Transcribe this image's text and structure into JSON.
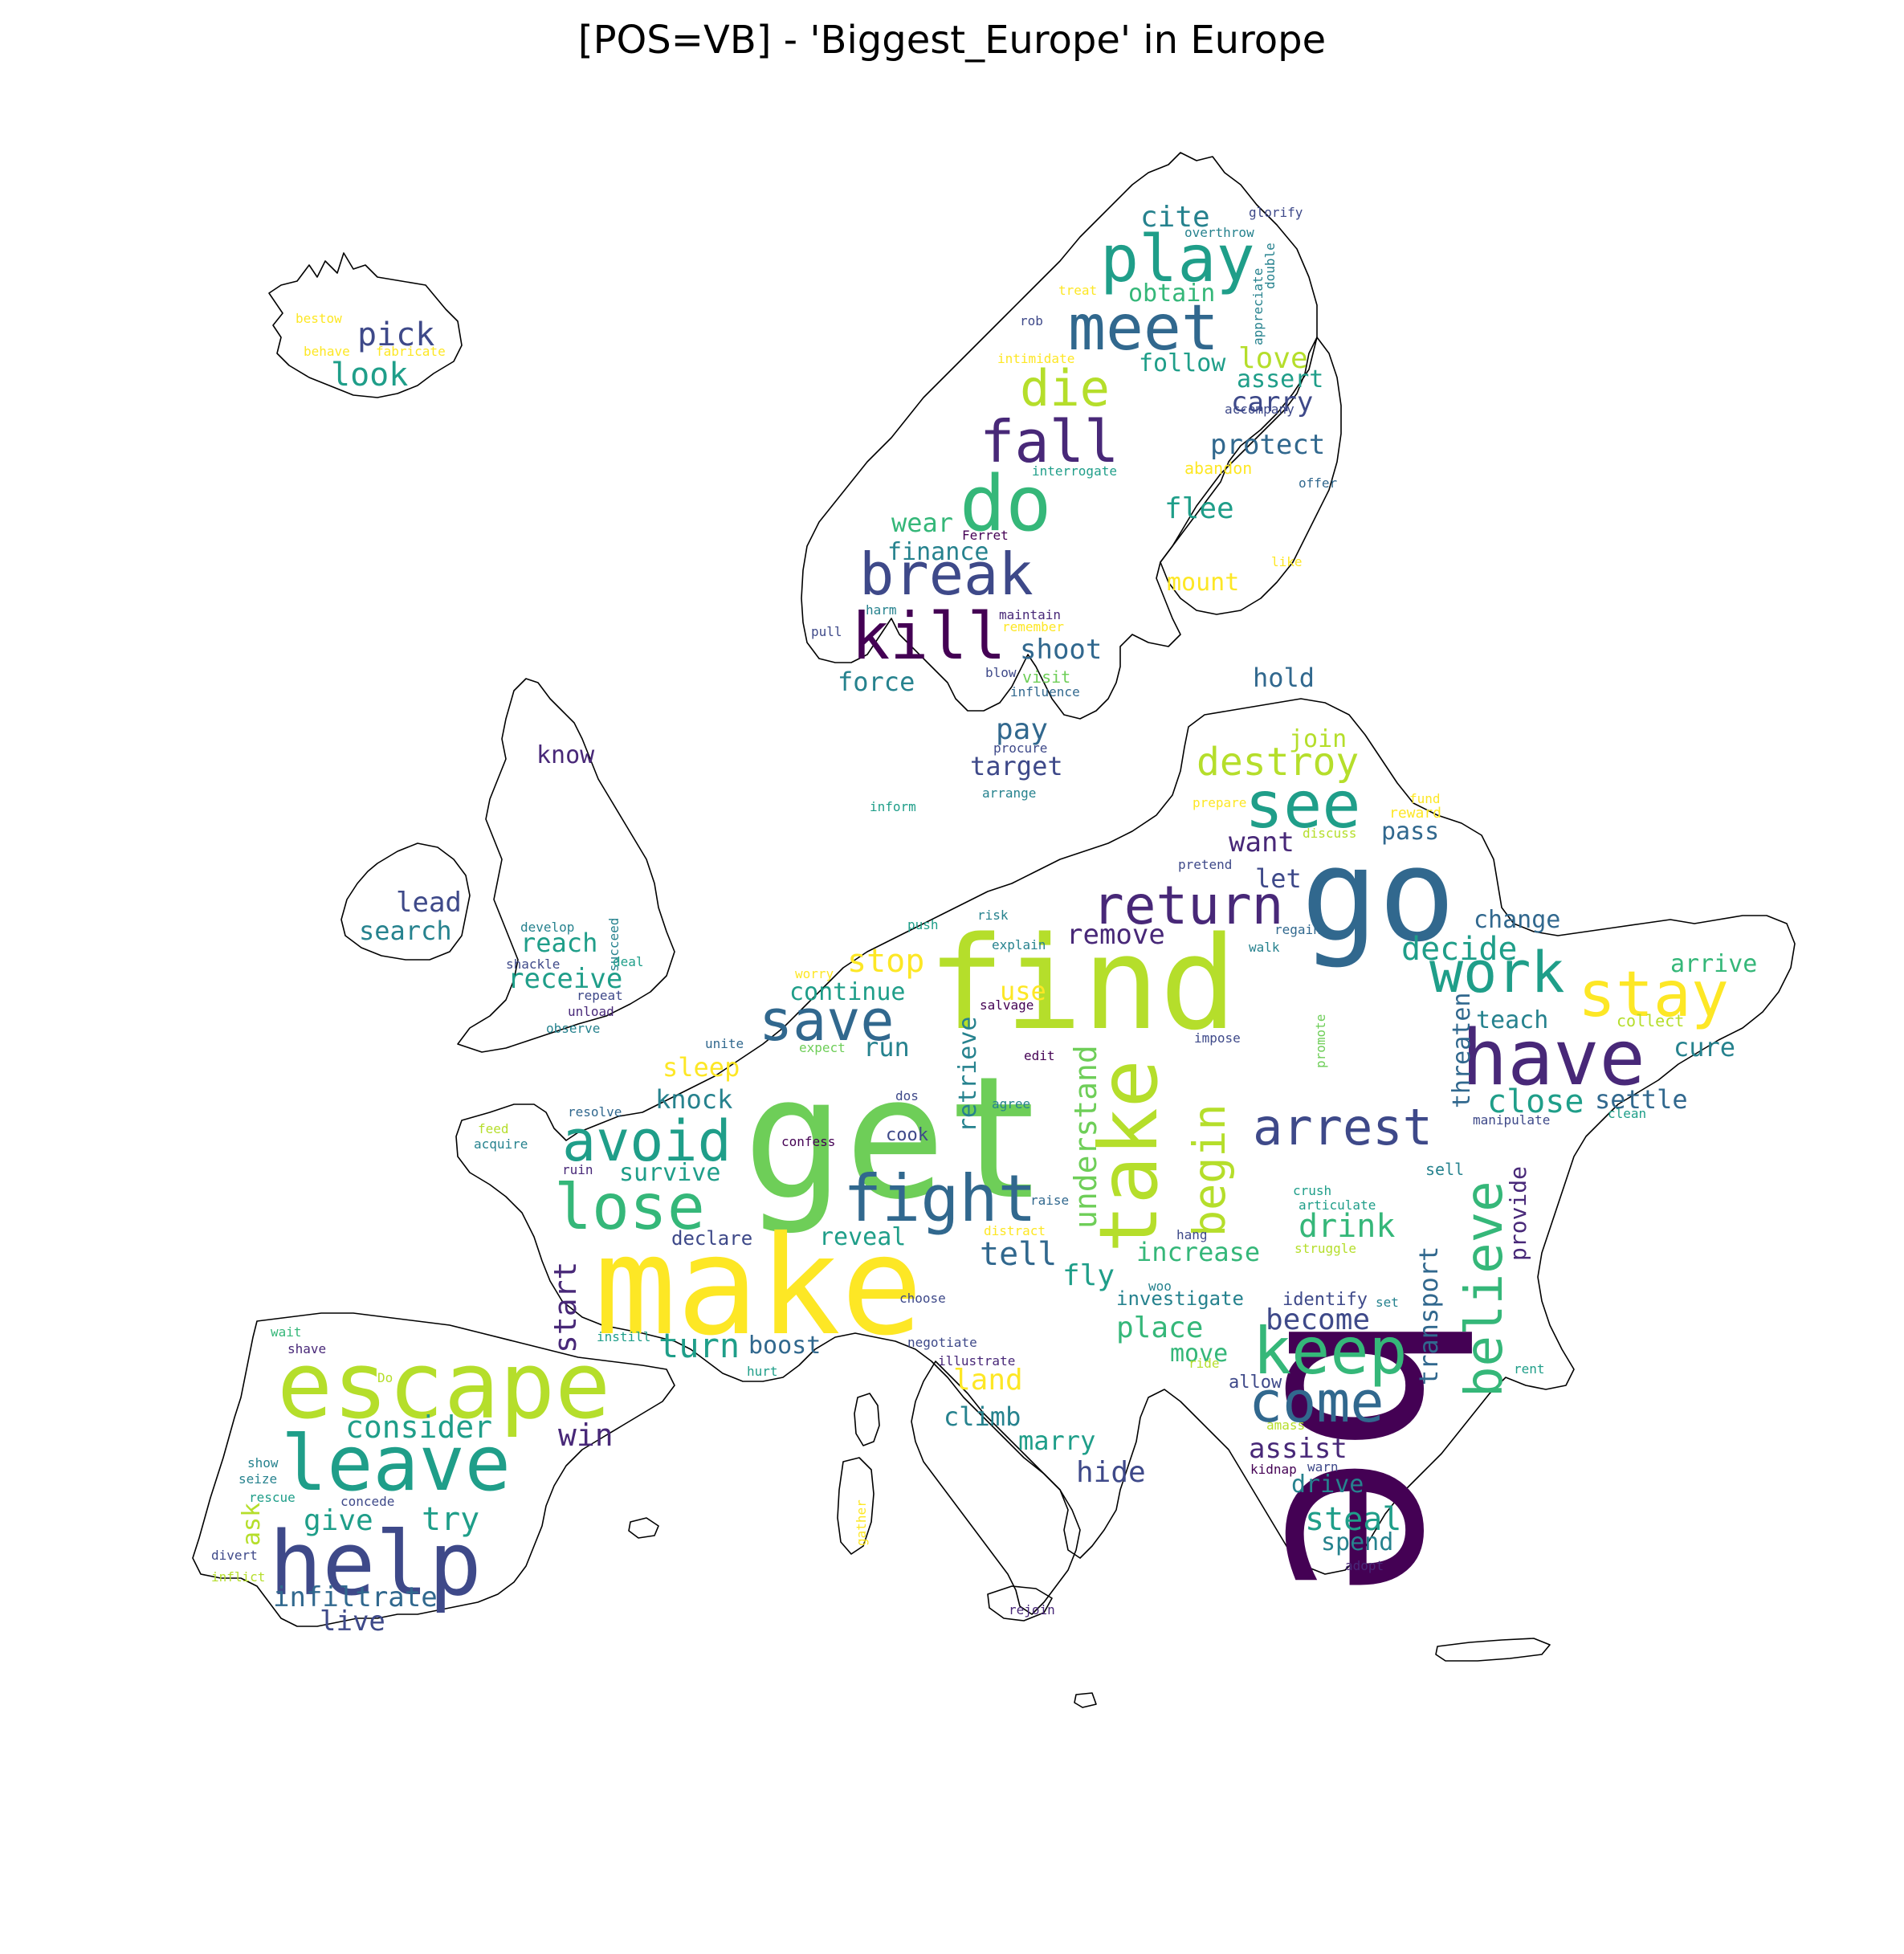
{
  "title": "[POS=VB] - 'Biggest_Europe' in Europe",
  "palette": {
    "dark_purple": "#440154",
    "purple": "#482878",
    "indigo": "#3e4989",
    "blue": "#31688e",
    "teal": "#26828e",
    "green_teal": "#1f9e89",
    "green": "#35b779",
    "light_green": "#6ece58",
    "lime": "#b5de2b",
    "yellow": "#fde725"
  },
  "words": [
    {
      "text": "be",
      "color": "dark_purple",
      "rotate": 90
    },
    {
      "text": "get",
      "color": "light_green"
    },
    {
      "text": "make",
      "color": "yellow"
    },
    {
      "text": "find",
      "color": "lime"
    },
    {
      "text": "go",
      "color": "blue"
    },
    {
      "text": "escape",
      "color": "lime"
    },
    {
      "text": "help",
      "color": "indigo"
    },
    {
      "text": "leave",
      "color": "green_teal"
    },
    {
      "text": "take",
      "color": "lime",
      "rotate": -90
    },
    {
      "text": "have",
      "color": "purple"
    },
    {
      "text": "keep",
      "color": "green"
    },
    {
      "text": "do",
      "color": "green"
    },
    {
      "text": "break",
      "color": "indigo"
    },
    {
      "text": "kill",
      "color": "dark_purple"
    },
    {
      "text": "play",
      "color": "green_teal"
    },
    {
      "text": "meet",
      "color": "blue"
    },
    {
      "text": "fall",
      "color": "purple"
    },
    {
      "text": "die",
      "color": "lime"
    },
    {
      "text": "fight",
      "color": "blue"
    },
    {
      "text": "lose",
      "color": "green"
    },
    {
      "text": "avoid",
      "color": "green_teal"
    },
    {
      "text": "save",
      "color": "blue"
    },
    {
      "text": "return",
      "color": "purple"
    },
    {
      "text": "see",
      "color": "green_teal"
    },
    {
      "text": "stay",
      "color": "yellow"
    },
    {
      "text": "work",
      "color": "green_teal"
    },
    {
      "text": "arrest",
      "color": "indigo"
    },
    {
      "text": "come",
      "color": "blue"
    },
    {
      "text": "believe",
      "color": "green",
      "rotate": -90
    },
    {
      "text": "begin",
      "color": "lime",
      "rotate": -90
    },
    {
      "text": "destroy",
      "color": "lime"
    },
    {
      "text": "understand",
      "color": "light_green",
      "rotate": -90
    },
    {
      "text": "start",
      "color": "purple",
      "rotate": -90
    },
    {
      "text": "turn",
      "color": "green_teal"
    },
    {
      "text": "consider",
      "color": "green_teal"
    },
    {
      "text": "win",
      "color": "purple"
    },
    {
      "text": "give",
      "color": "green_teal"
    },
    {
      "text": "try",
      "color": "green_teal"
    },
    {
      "text": "infiltrate",
      "color": "blue"
    },
    {
      "text": "live",
      "color": "indigo"
    },
    {
      "text": "ask",
      "color": "lime",
      "rotate": -90
    },
    {
      "text": "pick",
      "color": "indigo"
    },
    {
      "text": "look",
      "color": "green_teal"
    },
    {
      "text": "know",
      "color": "purple"
    },
    {
      "text": "lead",
      "color": "indigo"
    },
    {
      "text": "search",
      "color": "teal"
    },
    {
      "text": "reach",
      "color": "green_teal"
    },
    {
      "text": "receive",
      "color": "green_teal"
    },
    {
      "text": "stop",
      "color": "yellow"
    },
    {
      "text": "continue",
      "color": "green_teal"
    },
    {
      "text": "use",
      "color": "yellow"
    },
    {
      "text": "run",
      "color": "teal"
    },
    {
      "text": "sleep",
      "color": "yellow"
    },
    {
      "text": "knock",
      "color": "teal"
    },
    {
      "text": "survive",
      "color": "green_teal"
    },
    {
      "text": "declare",
      "color": "indigo"
    },
    {
      "text": "reveal",
      "color": "green_teal"
    },
    {
      "text": "tell",
      "color": "blue"
    },
    {
      "text": "fly",
      "color": "green_teal"
    },
    {
      "text": "boost",
      "color": "blue"
    },
    {
      "text": "land",
      "color": "yellow"
    },
    {
      "text": "climb",
      "color": "teal"
    },
    {
      "text": "marry",
      "color": "green_teal"
    },
    {
      "text": "hide",
      "color": "indigo"
    },
    {
      "text": "place",
      "color": "green"
    },
    {
      "text": "move",
      "color": "green"
    },
    {
      "text": "become",
      "color": "indigo"
    },
    {
      "text": "increase",
      "color": "green"
    },
    {
      "text": "drink",
      "color": "green"
    },
    {
      "text": "close",
      "color": "green_teal"
    },
    {
      "text": "settle",
      "color": "blue"
    },
    {
      "text": "cure",
      "color": "teal"
    },
    {
      "text": "arrive",
      "color": "green"
    },
    {
      "text": "teach",
      "color": "teal"
    },
    {
      "text": "change",
      "color": "blue"
    },
    {
      "text": "decide",
      "color": "green_teal"
    },
    {
      "text": "remove",
      "color": "purple"
    },
    {
      "text": "let",
      "color": "indigo"
    },
    {
      "text": "want",
      "color": "purple"
    },
    {
      "text": "pass",
      "color": "blue"
    },
    {
      "text": "join",
      "color": "lime"
    },
    {
      "text": "hold",
      "color": "blue"
    },
    {
      "text": "pay",
      "color": "blue"
    },
    {
      "text": "target",
      "color": "indigo"
    },
    {
      "text": "shoot",
      "color": "blue"
    },
    {
      "text": "force",
      "color": "teal"
    },
    {
      "text": "finance",
      "color": "teal"
    },
    {
      "text": "wear",
      "color": "green"
    },
    {
      "text": "flee",
      "color": "green_teal"
    },
    {
      "text": "mount",
      "color": "yellow"
    },
    {
      "text": "protect",
      "color": "blue"
    },
    {
      "text": "carry",
      "color": "indigo"
    },
    {
      "text": "assert",
      "color": "green_teal"
    },
    {
      "text": "love",
      "color": "lime"
    },
    {
      "text": "follow",
      "color": "green_teal"
    },
    {
      "text": "obtain",
      "color": "green"
    },
    {
      "text": "cite",
      "color": "teal"
    },
    {
      "text": "assist",
      "color": "purple"
    },
    {
      "text": "drive",
      "color": "teal"
    },
    {
      "text": "steal",
      "color": "green_teal"
    },
    {
      "text": "spend",
      "color": "teal"
    },
    {
      "text": "threaten",
      "color": "blue",
      "rotate": -90
    },
    {
      "text": "transport",
      "color": "blue",
      "rotate": -90
    },
    {
      "text": "provide",
      "color": "purple",
      "rotate": -90
    },
    {
      "text": "retrieve",
      "color": "teal",
      "rotate": -90
    },
    {
      "text": "investigate",
      "color": "teal"
    },
    {
      "text": "identify",
      "color": "indigo"
    },
    {
      "text": "allow",
      "color": "indigo"
    },
    {
      "text": "cook",
      "color": "indigo"
    },
    {
      "text": "glorify",
      "color": "indigo"
    },
    {
      "text": "overthrow",
      "color": "teal"
    },
    {
      "text": "treat",
      "color": "yellow"
    },
    {
      "text": "double",
      "color": "teal",
      "rotate": -90
    },
    {
      "text": "appreciate",
      "color": "teal",
      "rotate": -90
    },
    {
      "text": "rob",
      "color": "indigo"
    },
    {
      "text": "intimidate",
      "color": "yellow"
    },
    {
      "text": "accompany",
      "color": "indigo"
    },
    {
      "text": "interrogate",
      "color": "green_teal"
    },
    {
      "text": "abandon",
      "color": "yellow"
    },
    {
      "text": "offer",
      "color": "blue"
    },
    {
      "text": "Ferret",
      "color": "dark_purple"
    },
    {
      "text": "like",
      "color": "yellow"
    },
    {
      "text": "harm",
      "color": "teal"
    },
    {
      "text": "maintain",
      "color": "purple"
    },
    {
      "text": "remember",
      "color": "yellow"
    },
    {
      "text": "pull",
      "color": "indigo"
    },
    {
      "text": "blow",
      "color": "indigo"
    },
    {
      "text": "visit",
      "color": "light_green"
    },
    {
      "text": "influence",
      "color": "blue"
    },
    {
      "text": "procure",
      "color": "indigo"
    },
    {
      "text": "arrange",
      "color": "teal"
    },
    {
      "text": "inform",
      "color": "green_teal"
    },
    {
      "text": "prepare",
      "color": "yellow"
    },
    {
      "text": "fund",
      "color": "yellow"
    },
    {
      "text": "reward",
      "color": "yellow"
    },
    {
      "text": "discuss",
      "color": "lime"
    },
    {
      "text": "pretend",
      "color": "indigo"
    },
    {
      "text": "regain",
      "color": "blue"
    },
    {
      "text": "walk",
      "color": "teal"
    },
    {
      "text": "risk",
      "color": "teal"
    },
    {
      "text": "push",
      "color": "green_teal"
    },
    {
      "text": "explain",
      "color": "teal"
    },
    {
      "text": "salvage",
      "color": "dark_purple"
    },
    {
      "text": "impose",
      "color": "indigo"
    },
    {
      "text": "promote",
      "color": "light_green",
      "rotate": -90
    },
    {
      "text": "collect",
      "color": "lime"
    },
    {
      "text": "clean",
      "color": "green_teal"
    },
    {
      "text": "manipulate",
      "color": "indigo"
    },
    {
      "text": "sell",
      "color": "teal"
    },
    {
      "text": "crush",
      "color": "green_teal"
    },
    {
      "text": "articulate",
      "color": "green_teal"
    },
    {
      "text": "struggle",
      "color": "lime"
    },
    {
      "text": "hang",
      "color": "indigo"
    },
    {
      "text": "distract",
      "color": "yellow"
    },
    {
      "text": "raise",
      "color": "blue"
    },
    {
      "text": "agree",
      "color": "teal"
    },
    {
      "text": "edit",
      "color": "dark_purple"
    },
    {
      "text": "dos",
      "color": "indigo"
    },
    {
      "text": "expect",
      "color": "light_green"
    },
    {
      "text": "unite",
      "color": "blue"
    },
    {
      "text": "worry",
      "color": "yellow"
    },
    {
      "text": "develop",
      "color": "teal"
    },
    {
      "text": "succeed",
      "color": "teal",
      "rotate": -90
    },
    {
      "text": "shackle",
      "color": "indigo"
    },
    {
      "text": "deal",
      "color": "green_teal"
    },
    {
      "text": "repeat",
      "color": "indigo"
    },
    {
      "text": "unload",
      "color": "purple"
    },
    {
      "text": "observe",
      "color": "teal"
    },
    {
      "text": "resolve",
      "color": "blue"
    },
    {
      "text": "feed",
      "color": "lime"
    },
    {
      "text": "acquire",
      "color": "teal"
    },
    {
      "text": "confess",
      "color": "dark_purple"
    },
    {
      "text": "ruin",
      "color": "purple"
    },
    {
      "text": "choose",
      "color": "indigo"
    },
    {
      "text": "woo",
      "color": "teal"
    },
    {
      "text": "set",
      "color": "teal"
    },
    {
      "text": "negotiate",
      "color": "indigo"
    },
    {
      "text": "illustrate",
      "color": "purple"
    },
    {
      "text": "hurt",
      "color": "green_teal"
    },
    {
      "text": "ride",
      "color": "lime"
    },
    {
      "text": "rent",
      "color": "green_teal"
    },
    {
      "text": "amass",
      "color": "lime"
    },
    {
      "text": "kidnap",
      "color": "dark_purple"
    },
    {
      "text": "warn",
      "color": "indigo"
    },
    {
      "text": "adopt",
      "color": "purple"
    },
    {
      "text": "instill",
      "color": "green_teal"
    },
    {
      "text": "wait",
      "color": "green"
    },
    {
      "text": "shave",
      "color": "purple"
    },
    {
      "text": "Do",
      "color": "lime"
    },
    {
      "text": "show",
      "color": "teal"
    },
    {
      "text": "seize",
      "color": "teal"
    },
    {
      "text": "rescue",
      "color": "green_teal"
    },
    {
      "text": "concede",
      "color": "indigo"
    },
    {
      "text": "divert",
      "color": "indigo"
    },
    {
      "text": "inflict",
      "color": "lime"
    },
    {
      "text": "gather",
      "color": "yellow",
      "rotate": -90
    },
    {
      "text": "rejoin",
      "color": "purple"
    },
    {
      "text": "bestow",
      "color": "yellow"
    },
    {
      "text": "behave",
      "color": "yellow"
    },
    {
      "text": "fabricate",
      "color": "yellow"
    }
  ]
}
